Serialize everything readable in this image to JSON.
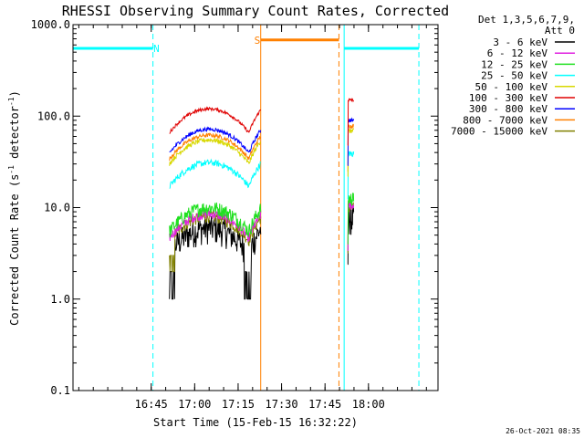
{
  "chart_data": {
    "type": "line",
    "title": "RHESSI Observing Summary Count Rates, Corrected",
    "xlabel": "Start Time (15-Feb-15 16:32:22)",
    "ylabel": "Corrected Count Rate (s",
    "ylabel_sup1": "-1",
    "ylabel_mid": " detector",
    "ylabel_sup2": "-1",
    "ylabel_end": ")",
    "y_scale": "log",
    "ylim": [
      0.1,
      1000
    ],
    "xlim_minutes": [
      16.3,
      18.4
    ],
    "y_ticks": [
      {
        "value": 0.1,
        "label": "0.1"
      },
      {
        "value": 1,
        "label": "1.0"
      },
      {
        "value": 10,
        "label": "10.0"
      },
      {
        "value": 100,
        "label": "100.0"
      },
      {
        "value": 1000,
        "label": "1000.0"
      }
    ],
    "x_ticks": [
      {
        "value": 16.75,
        "label": "16:45"
      },
      {
        "value": 17.0,
        "label": "17:00"
      },
      {
        "value": 17.25,
        "label": "17:15"
      },
      {
        "value": 17.5,
        "label": "17:30"
      },
      {
        "value": 17.75,
        "label": "17:45"
      },
      {
        "value": 18.0,
        "label": "18:00"
      }
    ],
    "legend": {
      "header1": "Det 1,3,5,6,7,9,",
      "header2": "Att 0",
      "placement": "right"
    },
    "series": [
      {
        "name": "3 - 6 keV",
        "color": "#000000",
        "base": 6.0,
        "noise": 0.35
      },
      {
        "name": "6 - 12 keV",
        "color": "#e020e0",
        "base": 8.5,
        "noise": 0.12
      },
      {
        "name": "12 - 25 keV",
        "color": "#20e020",
        "base": 10.0,
        "noise": 0.18
      },
      {
        "name": "25 - 50 keV",
        "color": "#00ffff",
        "base": 31.0,
        "noise": 0.08
      },
      {
        "name": "50 - 100 keV",
        "color": "#d8d800",
        "base": 55.0,
        "noise": 0.06
      },
      {
        "name": "100 - 300 keV",
        "color": "#e00000",
        "base": 120.0,
        "noise": 0.04
      },
      {
        "name": "300 - 800 keV",
        "color": "#0000ff",
        "base": 72.0,
        "noise": 0.05
      },
      {
        "name": "800 - 7000 keV",
        "color": "#ff8000",
        "base": 62.0,
        "noise": 0.05
      },
      {
        "name": "7000 - 15000 keV",
        "color": "#808000",
        "base": 8.0,
        "noise": 0.15
      }
    ],
    "data_segments": [
      {
        "start": 16.855,
        "end": 17.38
      },
      {
        "start": 17.88,
        "end": 17.915
      }
    ],
    "flags": [
      {
        "label": "N",
        "color": "#00ffff",
        "level": 550,
        "start": 16.3,
        "end": 16.76,
        "label_at": 16.78
      },
      {
        "label": "",
        "color": "#00ffff",
        "level": 550,
        "start": 17.86,
        "end": 18.29,
        "label_at": 0
      },
      {
        "label": "S",
        "color": "#ff8000",
        "level": 680,
        "start": 17.38,
        "end": 17.83,
        "label_at": 17.36
      }
    ],
    "vlines": [
      {
        "x": 16.3,
        "color": "#00ffff",
        "style": "solid"
      },
      {
        "x": 16.76,
        "color": "#00ffff",
        "style": "dashed"
      },
      {
        "x": 17.86,
        "color": "#00ffff",
        "style": "solid"
      },
      {
        "x": 18.29,
        "color": "#00ffff",
        "style": "dashed"
      },
      {
        "x": 17.38,
        "color": "#ff8000",
        "style": "solid"
      },
      {
        "x": 17.83,
        "color": "#ff8000",
        "style": "dashed"
      }
    ],
    "timestamp": "26-Oct-2021 08:35"
  }
}
